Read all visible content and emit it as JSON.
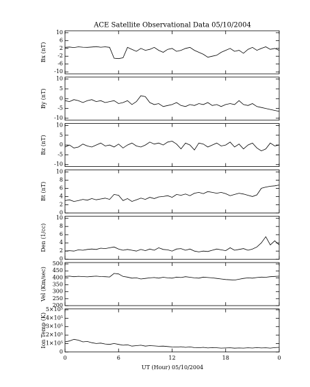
{
  "figure": {
    "title": "ACE Satellite Observational Data   05/10/2004",
    "xlabel": "UT (Hour)   05/10/2004",
    "xlim": [
      0,
      24
    ],
    "xticks": [
      0,
      6,
      12,
      18,
      {
        "value": 24,
        "label": "0"
      }
    ],
    "x": [
      0,
      0.5,
      1,
      1.5,
      2,
      2.5,
      3,
      3.5,
      4,
      4.5,
      5,
      5.5,
      6,
      6.5,
      7,
      7.5,
      8,
      8.5,
      9,
      9.5,
      10,
      10.5,
      11,
      11.5,
      12,
      12.5,
      13,
      13.5,
      14,
      14.5,
      15,
      15.5,
      16,
      16.5,
      17,
      17.5,
      18,
      18.5,
      19,
      19.5,
      20,
      20.5,
      21,
      21.5,
      22,
      22.5,
      23,
      23.5,
      24
    ]
  },
  "chart_data": [
    {
      "type": "line",
      "ylabel": "Bx (nT)",
      "color": "#000000",
      "ylim": [
        -11,
        11
      ],
      "yticks": [
        -10,
        -6,
        -2,
        2,
        6,
        10
      ],
      "values": [
        2.5,
        2.7,
        2.4,
        2.8,
        2.6,
        2.5,
        2.7,
        2.9,
        2.6,
        2.8,
        2.5,
        -3,
        -3.2,
        -2.8,
        2.5,
        1.5,
        0.5,
        2,
        1,
        1.5,
        2.5,
        1,
        0,
        1.5,
        2,
        0.5,
        1,
        2,
        2.5,
        1,
        0,
        -1,
        -2.5,
        -2,
        -1.5,
        0,
        1,
        2,
        0.5,
        1,
        -0.5,
        1.5,
        2.5,
        1,
        2,
        2.8,
        1.5,
        2,
        1
      ]
    },
    {
      "type": "line",
      "ylabel": "By (nT)",
      "color": "#000000",
      "ylim": [
        -11,
        11
      ],
      "yticks": [
        -10,
        -5,
        0,
        5,
        10
      ],
      "values": [
        -1,
        -1.5,
        -0.5,
        -1,
        -2,
        -1,
        -0.5,
        -1.5,
        -1,
        -2,
        -1.5,
        -1,
        -2.5,
        -2,
        -1,
        -3,
        -1.5,
        1.5,
        1,
        -2,
        -3,
        -2.5,
        -4,
        -3.5,
        -3,
        -2,
        -3.5,
        -4,
        -3,
        -3.5,
        -2.5,
        -3,
        -2,
        -3.5,
        -3,
        -4,
        -3,
        -2.5,
        -3,
        -1,
        -3,
        -3.5,
        -2.5,
        -4,
        -4.5,
        -5,
        -5.5,
        -6,
        -6.5
      ]
    },
    {
      "type": "line",
      "ylabel": "Bz (nT)",
      "color": "#000000",
      "ylim": [
        -11,
        11
      ],
      "yticks": [
        -10,
        -5,
        0,
        5,
        10
      ],
      "values": [
        -1,
        0,
        -1.5,
        -1,
        0.5,
        -0.5,
        -1,
        0,
        1,
        -0.5,
        0,
        -1,
        0.5,
        -1.5,
        0,
        1,
        -0.5,
        -1,
        0,
        1.5,
        0.5,
        1,
        0,
        1.5,
        2,
        0.5,
        -2,
        1,
        0,
        -2.5,
        1,
        0.5,
        -1,
        0,
        1,
        -0.5,
        0,
        1.5,
        -1,
        0.5,
        -2,
        0,
        1,
        -1.5,
        -3,
        -2,
        1,
        -0.5,
        0
      ]
    },
    {
      "type": "line",
      "ylabel": "Bt (nT)",
      "color": "#000000",
      "ylim": [
        0,
        10.5
      ],
      "yticks": [
        0,
        2,
        4,
        6,
        8,
        10
      ],
      "values": [
        3,
        3.2,
        2.8,
        3,
        3.3,
        3.1,
        3.5,
        3.2,
        3.4,
        3.6,
        3.3,
        4.5,
        4.3,
        3,
        3.5,
        2.8,
        3.2,
        3.6,
        3.3,
        3.8,
        3.5,
        3.9,
        4,
        4.2,
        3.8,
        4.5,
        4.3,
        4.6,
        4.2,
        4.8,
        5,
        4.7,
        5.2,
        5,
        4.8,
        5,
        4.7,
        4.2,
        4.5,
        4.8,
        4.6,
        4.3,
        4,
        4.4,
        6,
        6.3,
        6.5,
        6.6,
        6.8
      ]
    },
    {
      "type": "line",
      "ylabel": "Den (1/cc)",
      "color": "#000000",
      "ylim": [
        0,
        10.5
      ],
      "yticks": [
        0,
        2,
        4,
        6,
        8,
        10
      ],
      "values": [
        2,
        2.1,
        2,
        2.3,
        2.2,
        2.4,
        2.5,
        2.4,
        2.7,
        2.6,
        2.8,
        3,
        2.5,
        2.2,
        2.4,
        2.2,
        2,
        2.4,
        2.1,
        2.5,
        2.2,
        2.8,
        2.4,
        2.3,
        2,
        2.5,
        2.6,
        2.2,
        2.5,
        2,
        1.8,
        2,
        1.9,
        2.2,
        2.5,
        2.3,
        2.1,
        2.8,
        2.2,
        2.4,
        2.6,
        2.2,
        2.5,
        3,
        4,
        5.5,
        3.5,
        4.5,
        3.5
      ]
    },
    {
      "type": "line",
      "ylabel": "Vel (Km/sec)",
      "color": "#000000",
      "ylim": [
        200,
        510
      ],
      "yticks": [
        200,
        250,
        300,
        350,
        400,
        450,
        500
      ],
      "values": [
        410,
        412,
        408,
        411,
        409,
        407,
        410,
        412,
        409,
        408,
        406,
        432,
        428,
        410,
        405,
        398,
        400,
        392,
        396,
        400,
        402,
        398,
        404,
        400,
        398,
        405,
        402,
        408,
        404,
        400,
        398,
        405,
        402,
        400,
        396,
        392,
        388,
        386,
        384,
        390,
        396,
        400,
        398,
        402,
        405,
        404,
        408,
        410,
        412
      ]
    },
    {
      "type": "line",
      "ylabel": "Ion Temp (K)",
      "color": "#000000",
      "ylim": [
        0,
        510000
      ],
      "yticks": [
        0,
        {
          "value": 100000,
          "label": "1×10⁵"
        },
        {
          "value": 200000,
          "label": "2×10⁵"
        },
        {
          "value": 300000,
          "label": "3×10⁵"
        },
        {
          "value": 400000,
          "label": "4×10⁵"
        },
        {
          "value": 500000,
          "label": "5×10⁵"
        }
      ],
      "values": [
        120000,
        130000,
        150000,
        140000,
        120000,
        125000,
        110000,
        100000,
        105000,
        95000,
        90000,
        100000,
        90000,
        80000,
        85000,
        70000,
        75000,
        80000,
        70000,
        75000,
        72000,
        68000,
        70000,
        65000,
        60000,
        58000,
        62000,
        55000,
        60000,
        52000,
        50000,
        55000,
        48000,
        52000,
        50000,
        46000,
        48000,
        50000,
        45000,
        48000,
        46000,
        50000,
        47000,
        52000,
        48000,
        50000,
        46000,
        52000,
        55000
      ]
    }
  ]
}
